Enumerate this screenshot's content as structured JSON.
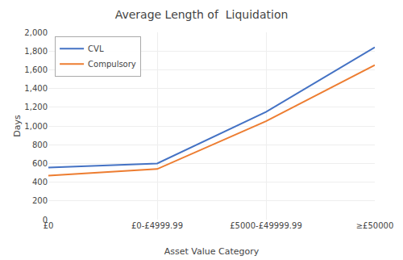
{
  "chart_data": {
    "type": "line",
    "title": "Average Length of  Liquidation",
    "xlabel": "Asset Value Category",
    "ylabel": "Days",
    "categories": [
      "£0",
      "£0-£4999.99",
      "£5000-£49999.99",
      "≥£50000"
    ],
    "series": [
      {
        "name": "CVL",
        "color": "#4472C4",
        "values": [
          555,
          600,
          1150,
          1840
        ]
      },
      {
        "name": "Compulsory",
        "color": "#ED7D31",
        "values": [
          470,
          540,
          1050,
          1650
        ]
      }
    ],
    "ylim": [
      0,
      2000
    ],
    "yticks": [
      0,
      200,
      400,
      600,
      800,
      {
        "value": 1000,
        "label": "1,000"
      },
      {
        "value": 1200,
        "label": "1,200"
      },
      {
        "value": 1400,
        "label": "1,400"
      },
      {
        "value": 1600,
        "label": "1,600"
      },
      {
        "value": 1800,
        "label": "1,800"
      },
      {
        "value": 2000,
        "label": "2,000"
      }
    ],
    "grid": true,
    "legend": "upper left"
  }
}
